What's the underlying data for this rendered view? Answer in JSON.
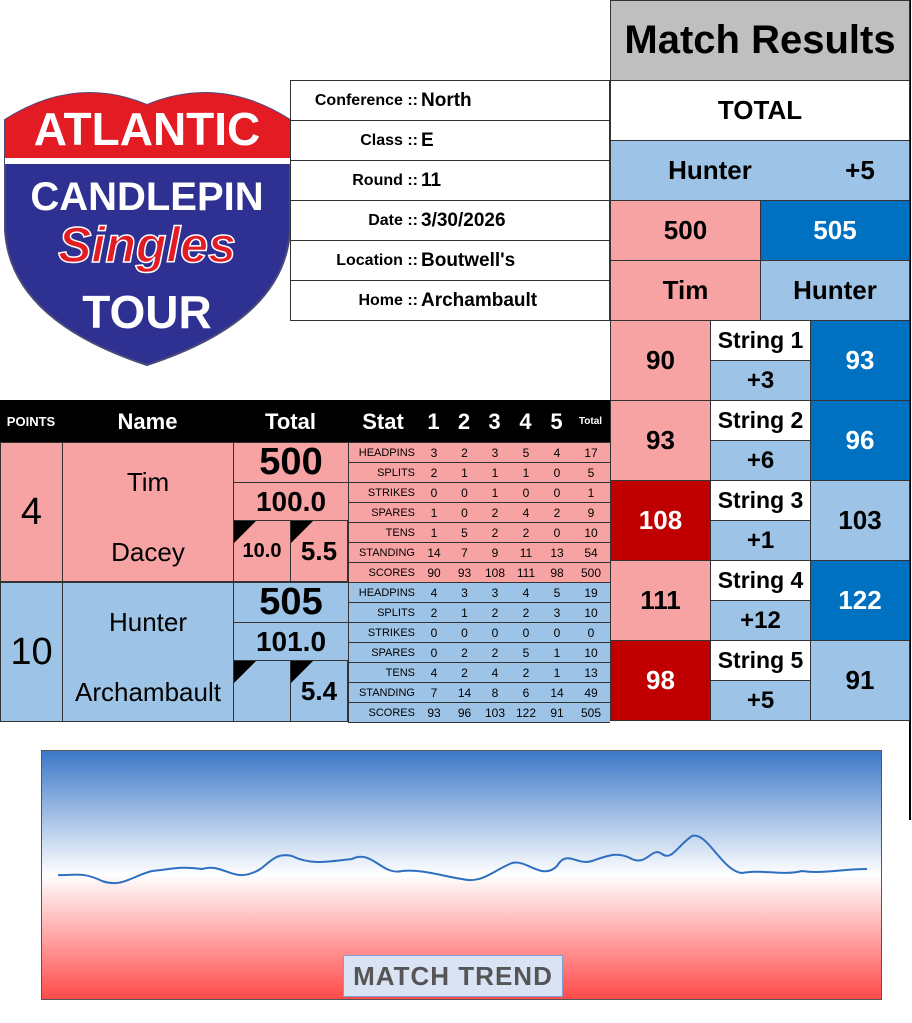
{
  "logo": {
    "line1": "ATLANTIC",
    "line2": "CANDLEPIN",
    "line3": "Singles",
    "line4": "TOUR"
  },
  "info": [
    {
      "label": "Conference ::",
      "value": "North"
    },
    {
      "label": "Class ::",
      "value": "E"
    },
    {
      "label": "Round ::",
      "value": "11"
    },
    {
      "label": "Date ::",
      "value": "3/30/2026"
    },
    {
      "label": "Location ::",
      "value": "Boutwell's"
    },
    {
      "label": "Home ::",
      "value": "Archambault"
    }
  ],
  "match_results": {
    "title": "Match Results",
    "total_label": "TOTAL",
    "leader": "Hunter",
    "margin": "+5",
    "score_left": 500,
    "score_right": 505,
    "name_left": "Tim",
    "name_right": "Hunter",
    "strings": [
      {
        "left": 90,
        "left_color": "#f8a3a3",
        "label": "String 1",
        "diff": "+3",
        "right": 93,
        "right_color": "#0070c0"
      },
      {
        "left": 93,
        "left_color": "#f8a3a3",
        "label": "String 2",
        "diff": "+6",
        "right": 96,
        "right_color": "#0070c0"
      },
      {
        "left": 108,
        "left_color": "#c00000",
        "label": "String 3",
        "diff": "+1",
        "right": 103,
        "right_color": "#9dc3e6"
      },
      {
        "left": 111,
        "left_color": "#f8a3a3",
        "label": "String 4",
        "diff": "+12",
        "right": 122,
        "right_color": "#0070c0"
      },
      {
        "left": 98,
        "left_color": "#c00000",
        "label": "String 5",
        "diff": "+5",
        "right": 91,
        "right_color": "#9dc3e6"
      }
    ]
  },
  "table": {
    "header": {
      "points": "POINTS",
      "name": "Name",
      "total": "Total",
      "stat": "Stat",
      "columns": [
        "1",
        "2",
        "3",
        "4",
        "5",
        "Total"
      ]
    },
    "players": [
      {
        "points": 4,
        "first_name": "Tim",
        "last_name": "Dacey",
        "total": 500,
        "average": "100.0",
        "stat_left": "10.0",
        "stat_right": "5.5",
        "color": "#f8a3a3",
        "stats": [
          {
            "label": "HEADPINS",
            "values": [
              3,
              2,
              3,
              5,
              4,
              17
            ]
          },
          {
            "label": "SPLITS",
            "values": [
              2,
              1,
              1,
              1,
              0,
              5
            ]
          },
          {
            "label": "STRIKES",
            "values": [
              0,
              0,
              1,
              0,
              0,
              1
            ]
          },
          {
            "label": "SPARES",
            "values": [
              1,
              0,
              2,
              4,
              2,
              9
            ]
          },
          {
            "label": "TENS",
            "values": [
              1,
              5,
              2,
              2,
              0,
              10
            ]
          },
          {
            "label": "STANDING",
            "values": [
              14,
              7,
              9,
              11,
              13,
              54
            ]
          },
          {
            "label": "SCORES",
            "values": [
              90,
              93,
              108,
              111,
              98,
              500
            ]
          }
        ]
      },
      {
        "points": 10,
        "first_name": "Hunter",
        "last_name": "Archambault",
        "total": 505,
        "average": "101.0",
        "stat_right": "5.4",
        "color": "#9dc3e6",
        "stats": [
          {
            "label": "HEADPINS",
            "values": [
              4,
              3,
              3,
              4,
              5,
              19
            ]
          },
          {
            "label": "SPLITS",
            "values": [
              2,
              1,
              2,
              2,
              3,
              10
            ]
          },
          {
            "label": "STRIKES",
            "values": [
              0,
              0,
              0,
              0,
              0,
              0
            ]
          },
          {
            "label": "SPARES",
            "values": [
              0,
              2,
              2,
              5,
              1,
              10
            ]
          },
          {
            "label": "TENS",
            "values": [
              4,
              2,
              4,
              2,
              1,
              13
            ]
          },
          {
            "label": "STANDING",
            "values": [
              7,
              14,
              8,
              6,
              14,
              49
            ]
          },
          {
            "label": "SCORES",
            "values": [
              93,
              96,
              103,
              122,
              91,
              505
            ]
          }
        ]
      }
    ]
  },
  "trend": {
    "label": "MATCH TREND"
  }
}
